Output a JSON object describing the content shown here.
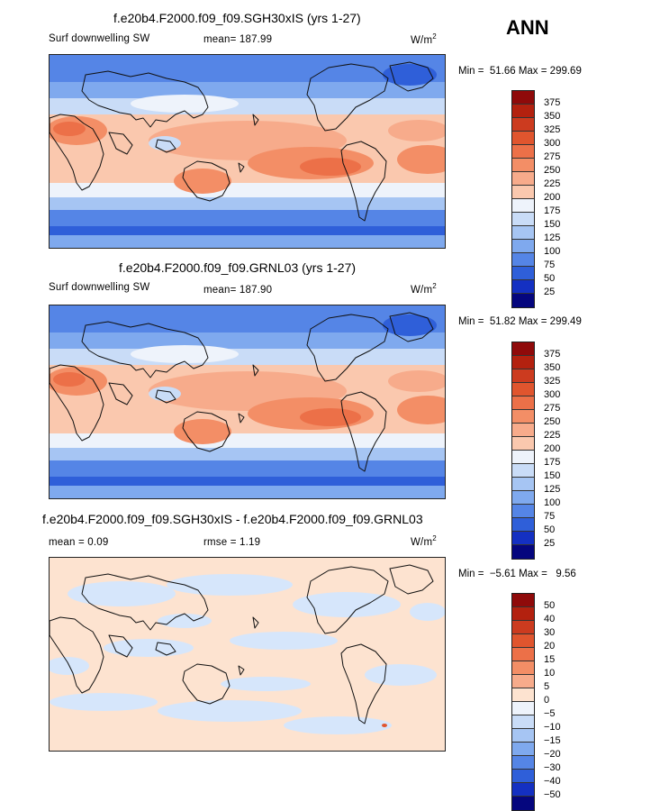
{
  "season": "ANN",
  "panels": [
    {
      "title": "f.e20b4.F2000.f09_f09.SGH30xIS (yrs 1-27)",
      "left_label": "Surf downwelling SW",
      "stat_label": "mean= 187.99",
      "units_base": "W/m",
      "units_exp": "2",
      "min_label": "Min =",
      "min_value": "51.66",
      "max_label": "Max =",
      "max_value": "299.69",
      "type": "field",
      "colorbar": {
        "labels": [
          "375",
          "350",
          "325",
          "300",
          "275",
          "250",
          "225",
          "200",
          "175",
          "150",
          "125",
          "100",
          "75",
          "50",
          "25"
        ],
        "colors": [
          "#8f0a0a",
          "#b3210f",
          "#cc3b1f",
          "#e0552e",
          "#ec7048",
          "#f38e66",
          "#f7ab8b",
          "#fac8ae",
          "#eef3fb",
          "#c9dcf7",
          "#a6c5f3",
          "#7fa9ee",
          "#5585e6",
          "#2f5fd9",
          "#1430c2",
          "#05067e"
        ]
      }
    },
    {
      "title": "f.e20b4.F2000.f09_f09.GRNL03 (yrs 1-27)",
      "left_label": "Surf downwelling SW",
      "stat_label": "mean= 187.90",
      "units_base": "W/m",
      "units_exp": "2",
      "min_label": "Min =",
      "min_value": "51.82",
      "max_label": "Max =",
      "max_value": "299.49",
      "type": "field",
      "colorbar": {
        "labels": [
          "375",
          "350",
          "325",
          "300",
          "275",
          "250",
          "225",
          "200",
          "175",
          "150",
          "125",
          "100",
          "75",
          "50",
          "25"
        ],
        "colors": [
          "#8f0a0a",
          "#b3210f",
          "#cc3b1f",
          "#e0552e",
          "#ec7048",
          "#f38e66",
          "#f7ab8b",
          "#fac8ae",
          "#eef3fb",
          "#c9dcf7",
          "#a6c5f3",
          "#7fa9ee",
          "#5585e6",
          "#2f5fd9",
          "#1430c2",
          "#05067e"
        ]
      }
    },
    {
      "title": "f.e20b4.F2000.f09_f09.SGH30xIS - f.e20b4.F2000.f09_f09.GRNL03",
      "left_label": "mean =    0.09",
      "stat_label": "rmse =    1.19",
      "units_base": "W/m",
      "units_exp": "2",
      "min_label": "Min =",
      "min_value": "−5.61",
      "max_label": "Max =",
      "max_value": "9.56",
      "type": "diff",
      "colorbar": {
        "labels": [
          "50",
          "40",
          "30",
          "20",
          "15",
          "10",
          "5",
          "0",
          "−5",
          "−10",
          "−15",
          "−20",
          "−30",
          "−40",
          "−50"
        ],
        "colors": [
          "#8f0a0a",
          "#b3210f",
          "#cc3b1f",
          "#e0552e",
          "#ec7048",
          "#f38e66",
          "#f7ab8b",
          "#fde3d0",
          "#eef3fb",
          "#c9dcf7",
          "#a6c5f3",
          "#7fa9ee",
          "#5585e6",
          "#2f5fd9",
          "#1430c2",
          "#05067e"
        ]
      }
    }
  ]
}
